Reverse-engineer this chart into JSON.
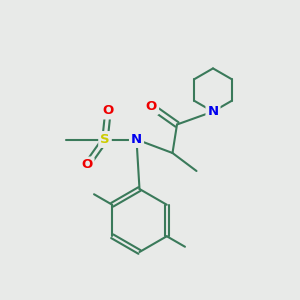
{
  "background_color": "#e8eae8",
  "bond_color": "#3a7a5a",
  "bond_width": 1.5,
  "atom_colors": {
    "N": "#0000ee",
    "O": "#ee0000",
    "S": "#cccc00",
    "C": "#3a7a5a"
  },
  "font_size_atom": 9.5,
  "font_size_methyl": 8.0,
  "figsize": [
    3.0,
    3.0
  ],
  "dpi": 100
}
